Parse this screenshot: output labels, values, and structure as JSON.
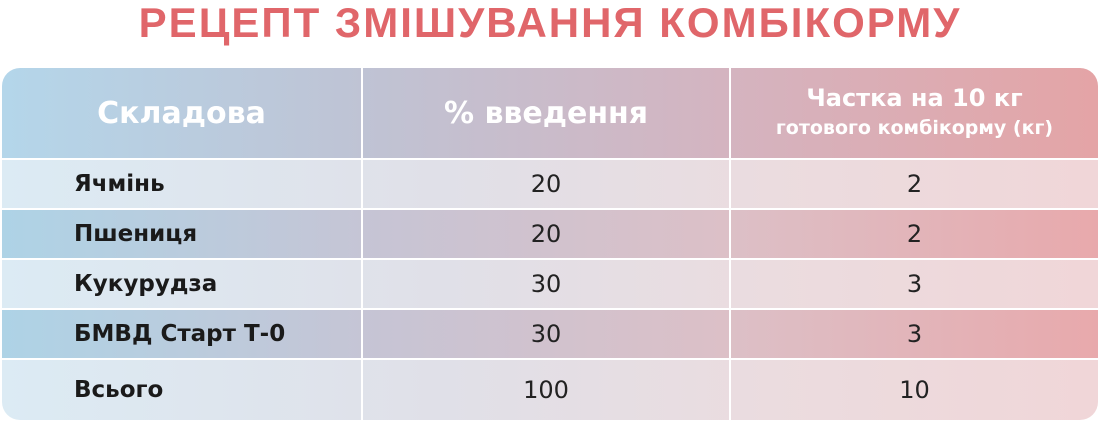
{
  "title": "РЕЦЕПТ ЗМІШУВАННЯ КОМБІКОРМУ",
  "headers": {
    "ingredient": "Складова",
    "percent": "% введення",
    "share_line1": "Частка на 10 кг",
    "share_line2": "готового комбікорму (кг)"
  },
  "rows": [
    {
      "name": "Ячмінь",
      "percent": "20",
      "kg": "2"
    },
    {
      "name": "Пшениця",
      "percent": "20",
      "kg": "2"
    },
    {
      "name": "Кукурудза",
      "percent": "30",
      "kg": "3"
    },
    {
      "name": "БМВД Старт Т-0",
      "percent": "30",
      "kg": "3"
    },
    {
      "name": "Всього",
      "percent": "100",
      "kg": "10"
    }
  ],
  "colors": {
    "title": "#e0666a",
    "header_left": "#b4d6ea",
    "header_right": "#e4a4a6"
  }
}
